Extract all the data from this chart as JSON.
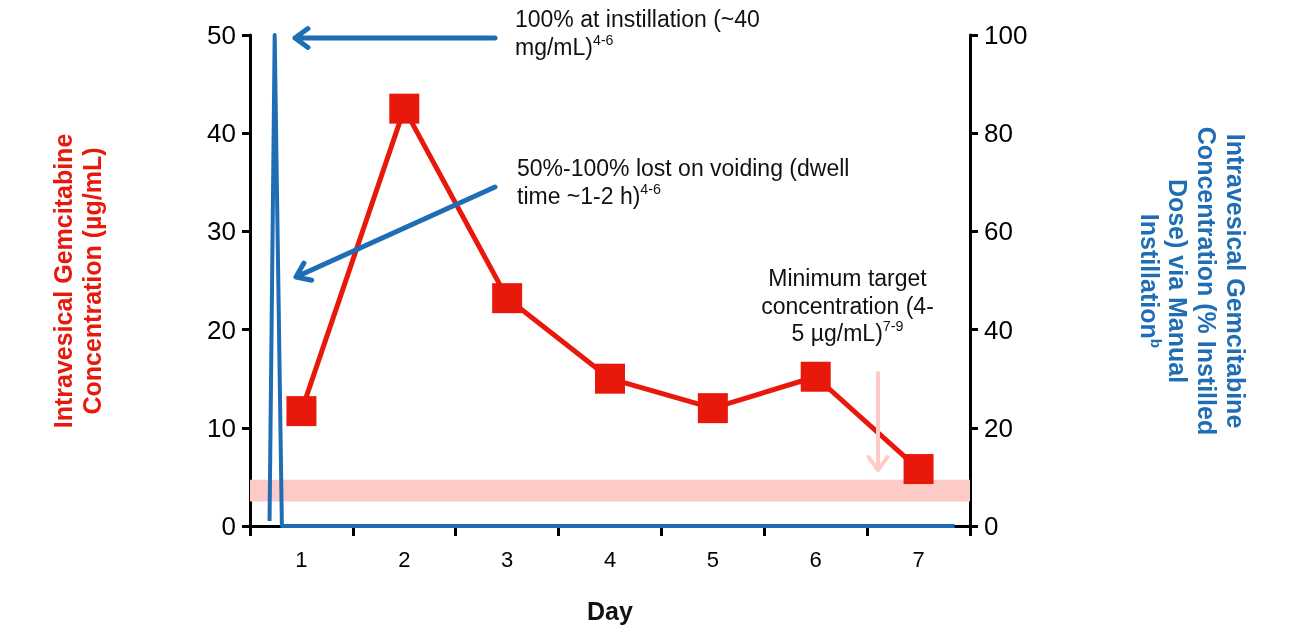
{
  "chart_data": {
    "type": "line",
    "xlabel": "Day",
    "ylabel": "Intravesical Gemcitabine Concentration (µg/mL)",
    "y2label": "Intravesical Gemcitabine Concentration (% Instilled Dose) via Manual Instillation$^{b}$",
    "x": [
      1,
      2,
      3,
      4,
      5,
      6,
      7
    ],
    "xlim": [
      0.5,
      7.5
    ],
    "xticks": [
      {
        "value": 0.5,
        "label": null
      },
      1,
      {
        "value": 1.5,
        "label": null
      },
      2,
      {
        "value": 2.5,
        "label": null
      },
      3,
      {
        "value": 3.5,
        "label": null
      },
      4,
      {
        "value": 4.5,
        "label": null
      },
      5,
      {
        "value": 5.5,
        "label": null
      },
      6,
      {
        "value": 6.5,
        "label": null
      },
      7,
      {
        "value": 7.5,
        "label": null
      }
    ],
    "ylim": [
      0,
      50
    ],
    "yticks": [
      0,
      10,
      20,
      30,
      40,
      50
    ],
    "y2lim": [
      0,
      100
    ],
    "y2ticks": [
      0,
      20,
      40,
      60,
      80,
      100
    ],
    "series": [
      {
        "color": "#e8190b",
        "marker": "square",
        "values": [
          11.7,
          42.5,
          23.2,
          15.0,
          12.0,
          15.2,
          5.8
        ]
      },
      {
        "color": "#1f6db5",
        "axis": "y2",
        "marker": "none",
        "x": [
          0.69,
          0.74,
          0.81,
          7.35
        ],
        "values": [
          1,
          100,
          0,
          0
        ]
      }
    ],
    "bands": [
      {
        "axis": "y",
        "from": 2.5,
        "to": 4.7,
        "color": "#fccbc8"
      }
    ],
    "annotations": [
      "100% at instillation (~40 mg/mL)$^{4-6}$",
      "50%-100% lost on voiding (dwell time ~1-2 h)$^{4-6}$",
      "Minimum target concentration (4-5 µg/mL)$^{7-9}$"
    ],
    "grid": false
  }
}
